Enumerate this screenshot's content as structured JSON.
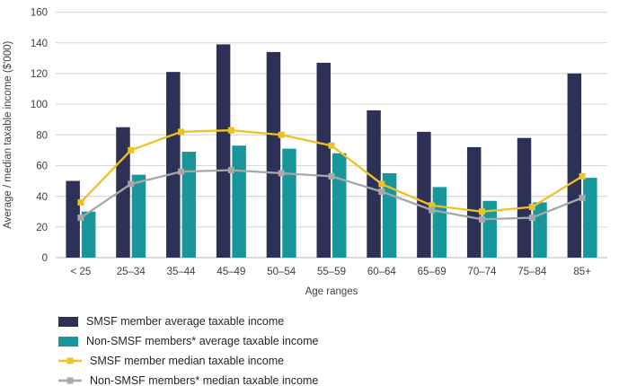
{
  "chart_data": {
    "type": "bar",
    "xlabel": "Age ranges",
    "ylabel": "Average / median taxable income ($'000)",
    "ylim": [
      0,
      160
    ],
    "ytick_step": 20,
    "grid": true,
    "legend_position": "bottom-left",
    "categories": [
      "< 25",
      "25–34",
      "35–44",
      "45–49",
      "50–54",
      "55–59",
      "60–64",
      "65–69",
      "70–74",
      "75–84",
      "85+"
    ],
    "series": [
      {
        "name": "SMSF member average taxable income",
        "type": "bar",
        "color": "#2D3156",
        "values": [
          50,
          85,
          121,
          139,
          134,
          127,
          96,
          82,
          72,
          78,
          120
        ]
      },
      {
        "name": "Non-SMSF members* average taxable income",
        "type": "bar",
        "color": "#17979C",
        "values": [
          30,
          54,
          69,
          73,
          71,
          68,
          55,
          46,
          37,
          36,
          52
        ]
      },
      {
        "name": "SMSF member median taxable income",
        "type": "line",
        "color": "#F0C125",
        "marker": "square",
        "values": [
          36,
          70,
          82,
          83,
          80,
          73,
          48,
          34,
          30,
          33,
          53
        ]
      },
      {
        "name": "Non-SMSF members* median taxable income",
        "type": "line",
        "color": "#A8A8A8",
        "marker": "square",
        "values": [
          26,
          48,
          56,
          57,
          55,
          53,
          43,
          31,
          25,
          26,
          39
        ]
      }
    ]
  },
  "colors": {
    "background": "#FFFFFF",
    "gridline": "#D9D9D9",
    "baseline": "#C6C6C6",
    "axis_text": "#404040",
    "legend_text": "#262626"
  }
}
